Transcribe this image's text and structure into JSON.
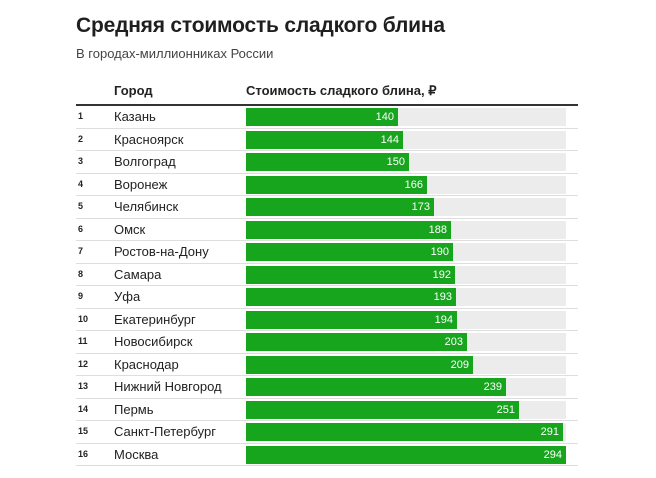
{
  "title": "Средняя стоимость сладкого блина",
  "subtitle": "В городах-миллионниках России",
  "columns": {
    "city": "Город",
    "value": "Стоимость сладкого блина, ₽"
  },
  "colors": {
    "bar": "#17a51e",
    "track": "#ececec"
  },
  "chart_data": {
    "type": "bar",
    "orientation": "horizontal",
    "title": "Средняя стоимость сладкого блина",
    "subtitle": "В городах-миллионниках России",
    "ylabel": "Город",
    "xlabel": "Стоимость сладкого блина, ₽",
    "xlim": [
      0,
      294
    ],
    "rows": [
      {
        "rank": "1",
        "city": "Казань",
        "value": 140
      },
      {
        "rank": "2",
        "city": "Красноярск",
        "value": 144
      },
      {
        "rank": "3",
        "city": "Волгоград",
        "value": 150
      },
      {
        "rank": "4",
        "city": "Воронеж",
        "value": 166
      },
      {
        "rank": "5",
        "city": "Челябинск",
        "value": 173
      },
      {
        "rank": "6",
        "city": "Омск",
        "value": 188
      },
      {
        "rank": "7",
        "city": "Ростов-на-Дону",
        "value": 190
      },
      {
        "rank": "8",
        "city": "Самара",
        "value": 192
      },
      {
        "rank": "9",
        "city": "Уфа",
        "value": 193
      },
      {
        "rank": "10",
        "city": "Екатеринбург",
        "value": 194
      },
      {
        "rank": "11",
        "city": "Новосибирск",
        "value": 203
      },
      {
        "rank": "12",
        "city": "Краснодар",
        "value": 209
      },
      {
        "rank": "13",
        "city": "Нижний Новгород",
        "value": 239
      },
      {
        "rank": "14",
        "city": "Пермь",
        "value": 251
      },
      {
        "rank": "15",
        "city": "Санкт-Петербург",
        "value": 291
      },
      {
        "rank": "16",
        "city": "Москва",
        "value": 294
      }
    ]
  }
}
